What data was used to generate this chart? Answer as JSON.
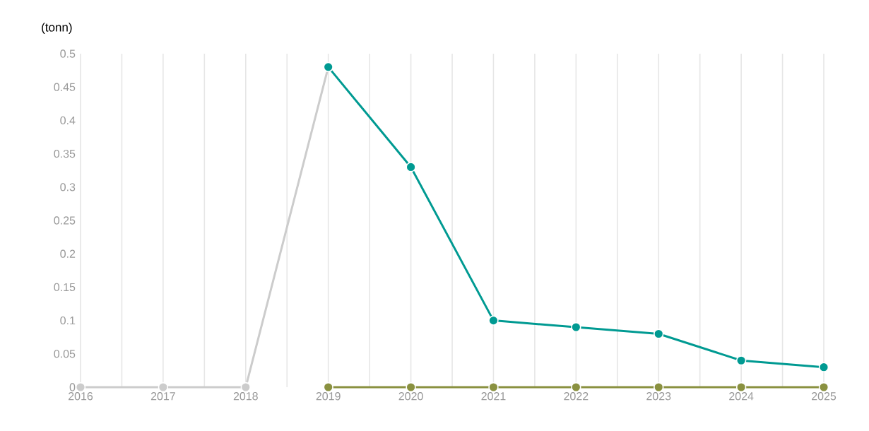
{
  "chart_data": {
    "type": "line",
    "ylabel": "(tonn)",
    "categories": [
      "2016",
      "2017",
      "2018",
      "2019",
      "2020",
      "2021",
      "2022",
      "2023",
      "2024",
      "2025"
    ],
    "series": [
      {
        "color": "#cccccc",
        "values": [
          0,
          0,
          0,
          0.48,
          null,
          null,
          null,
          null,
          null,
          null
        ]
      },
      {
        "color": "#8a9140",
        "values": [
          null,
          null,
          null,
          0,
          0,
          0,
          0,
          0,
          0,
          0
        ]
      },
      {
        "color": "#009a92",
        "values": [
          null,
          null,
          null,
          0.48,
          0.33,
          0.1,
          0.09,
          0.08,
          0.04,
          0.03
        ]
      }
    ],
    "ylim": [
      0,
      0.5
    ],
    "yticks": [
      0,
      0.05,
      0.1,
      0.15,
      0.2,
      0.25,
      0.3,
      0.35,
      0.4,
      0.45,
      0.5
    ],
    "grid": "x",
    "marker": "circle",
    "line_style": "solid"
  }
}
